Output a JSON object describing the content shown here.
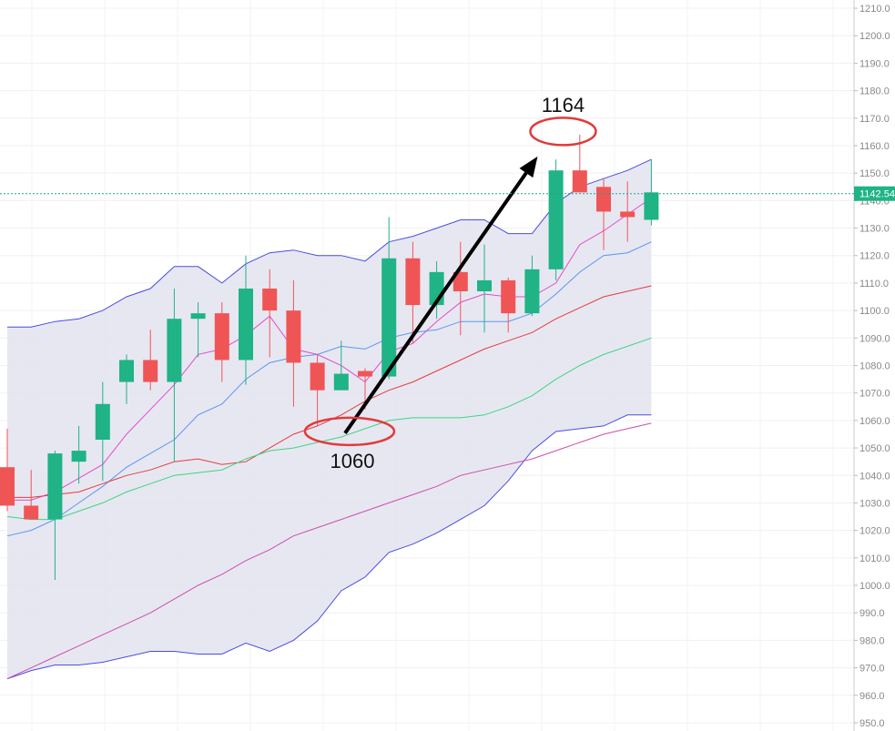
{
  "chart_data": {
    "type": "candlestick",
    "ylim": [
      947,
      1213
    ],
    "y_ticks": [
      950,
      960,
      970,
      980,
      990,
      1000,
      1010,
      1020,
      1030,
      1040,
      1050,
      1060,
      1070,
      1080,
      1090,
      1100,
      1110,
      1120,
      1130,
      1140,
      1150,
      1160,
      1170,
      1180,
      1190,
      1200,
      1210
    ],
    "y_tick_labels": [
      "950.0",
      "960.0",
      "970.0",
      "980.0",
      "990.0",
      "1000.0",
      "1010.0",
      "1020.0",
      "1030.0",
      "1040.0",
      "1050.0",
      "1060.0",
      "1070.0",
      "1080.0",
      "1090.0",
      "1100.0",
      "1110.0",
      "1120.0",
      "1130.0",
      "1140.0",
      "1150.0",
      "1160.0",
      "1170.0",
      "1180.0",
      "1190.0",
      "1200.0",
      "1210.0"
    ],
    "grid": true,
    "colors": {
      "up": "#1fb386",
      "down": "#f05556",
      "band_fill": "#e3e3f0",
      "band_line": "#4a4de0",
      "price_line": "#1fa58a"
    },
    "candles": [
      {
        "o": 1043,
        "h": 1057,
        "l": 1027,
        "c": 1029
      },
      {
        "o": 1029,
        "h": 1042,
        "l": 1024,
        "c": 1024
      },
      {
        "o": 1024,
        "h": 1049,
        "l": 1002,
        "c": 1048
      },
      {
        "o": 1045,
        "h": 1058,
        "l": 1037,
        "c": 1049
      },
      {
        "o": 1053,
        "h": 1074,
        "l": 1038,
        "c": 1066
      },
      {
        "o": 1074,
        "h": 1084,
        "l": 1066,
        "c": 1082
      },
      {
        "o": 1082,
        "h": 1093,
        "l": 1071,
        "c": 1074
      },
      {
        "o": 1074,
        "h": 1108,
        "l": 1045,
        "c": 1097
      },
      {
        "o": 1097,
        "h": 1103,
        "l": 1083,
        "c": 1099
      },
      {
        "o": 1099,
        "h": 1103,
        "l": 1074,
        "c": 1082
      },
      {
        "o": 1082,
        "h": 1120,
        "l": 1073,
        "c": 1108
      },
      {
        "o": 1108,
        "h": 1115,
        "l": 1083,
        "c": 1100
      },
      {
        "o": 1100,
        "h": 1111,
        "l": 1065,
        "c": 1081
      },
      {
        "o": 1081,
        "h": 1084,
        "l": 1058,
        "c": 1071
      },
      {
        "o": 1071,
        "h": 1089,
        "l": 1071,
        "c": 1077
      },
      {
        "o": 1078,
        "h": 1079,
        "l": 1064,
        "c": 1076
      },
      {
        "o": 1076,
        "h": 1134,
        "l": 1075,
        "c": 1119
      },
      {
        "o": 1119,
        "h": 1125,
        "l": 1088,
        "c": 1102
      },
      {
        "o": 1102,
        "h": 1118,
        "l": 1097,
        "c": 1114
      },
      {
        "o": 1114,
        "h": 1125,
        "l": 1091,
        "c": 1107
      },
      {
        "o": 1107,
        "h": 1124,
        "l": 1092,
        "c": 1111
      },
      {
        "o": 1111,
        "h": 1112,
        "l": 1092,
        "c": 1099
      },
      {
        "o": 1099,
        "h": 1120,
        "l": 1098,
        "c": 1115
      },
      {
        "o": 1115,
        "h": 1155,
        "l": 1111,
        "c": 1151
      },
      {
        "o": 1151,
        "h": 1164,
        "l": 1143,
        "c": 1143
      },
      {
        "o": 1145,
        "h": 1148,
        "l": 1122,
        "c": 1136
      },
      {
        "o": 1136,
        "h": 1147,
        "l": 1125,
        "c": 1134
      },
      {
        "o": 1133,
        "h": 1155,
        "l": 1131,
        "c": 1143
      }
    ],
    "series": [
      {
        "color": "#4a4de0",
        "values": [
          1094,
          1094,
          1096,
          1097,
          1100,
          1105,
          1108,
          1116,
          1116,
          1110,
          1117,
          1121,
          1122,
          1120,
          1120,
          1118,
          1125,
          1127,
          1130,
          1133,
          1133,
          1128,
          1128,
          1139,
          1145,
          1148,
          1151,
          1155
        ]
      },
      {
        "color": "#4a4de0",
        "values": [
          966,
          969,
          971,
          971,
          972,
          974,
          976,
          976,
          975,
          975,
          979,
          976,
          980,
          987,
          998,
          1003,
          1012,
          1015,
          1019,
          1024,
          1029,
          1038,
          1049,
          1056,
          1057,
          1058,
          1062,
          1062
        ]
      },
      {
        "color": "#e24cc8",
        "values": [
          1031,
          1031,
          1034,
          1039,
          1044,
          1055,
          1064,
          1073,
          1084,
          1086,
          1091,
          1098,
          1086,
          1084,
          1080,
          1074,
          1085,
          1088,
          1096,
          1103,
          1106,
          1105,
          1105,
          1110,
          1124,
          1129,
          1135,
          1141
        ]
      },
      {
        "color": "#5a96ee",
        "values": [
          1018,
          1020,
          1024,
          1030,
          1036,
          1043,
          1048,
          1053,
          1062,
          1066,
          1075,
          1081,
          1083,
          1084,
          1087,
          1086,
          1090,
          1092,
          1093,
          1096,
          1096,
          1096,
          1099,
          1106,
          1114,
          1120,
          1121,
          1125
        ]
      },
      {
        "color": "#e63c3c",
        "values": [
          1032,
          1032,
          1033,
          1034,
          1037,
          1040,
          1042,
          1045,
          1046,
          1044,
          1045,
          1050,
          1055,
          1058,
          1062,
          1067,
          1071,
          1074,
          1078,
          1082,
          1086,
          1089,
          1092,
          1097,
          1101,
          1105,
          1107,
          1109
        ]
      },
      {
        "color": "#3cd680",
        "values": [
          1025,
          1024,
          1024,
          1027,
          1030,
          1034,
          1037,
          1040,
          1041,
          1042,
          1046,
          1049,
          1050,
          1052,
          1054,
          1057,
          1060,
          1061,
          1061,
          1061,
          1062,
          1065,
          1069,
          1075,
          1080,
          1084,
          1087,
          1090
        ]
      },
      {
        "color": "#cc4faa",
        "values": [
          966,
          970,
          974,
          978,
          982,
          986,
          990,
          995,
          1000,
          1004,
          1009,
          1013,
          1018,
          1021,
          1024,
          1027,
          1030,
          1033,
          1036,
          1040,
          1042,
          1044,
          1046,
          1049,
          1052,
          1055,
          1057,
          1059
        ]
      }
    ],
    "current_price": 1142.54,
    "current_price_label": "1142.54",
    "annotations": [
      {
        "label": "1164",
        "value": 1164
      },
      {
        "label": "1060",
        "value": 1060
      }
    ]
  }
}
